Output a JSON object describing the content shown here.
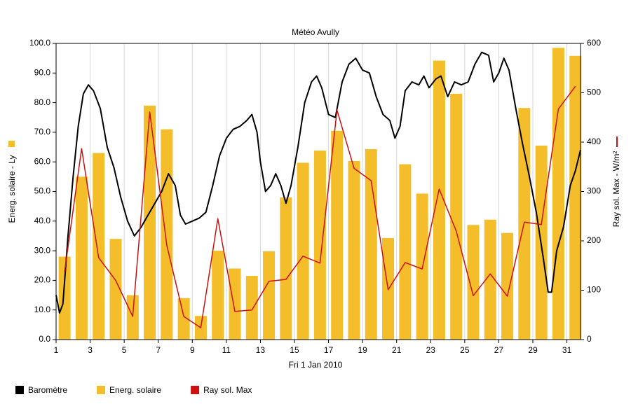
{
  "chart_data": {
    "type": "combo",
    "title": "Météo Avully",
    "xlabel": "Fri 1 Jan 2010",
    "ylabel": "Energ. solaire - Ly",
    "y2label": "Ray sol. Max - W/m²",
    "xlim": [
      1,
      31.8
    ],
    "xticks": [
      1,
      3,
      5,
      7,
      9,
      11,
      13,
      15,
      17,
      19,
      21,
      23,
      25,
      27,
      29,
      31
    ],
    "ylim": [
      0,
      100
    ],
    "yticks": [
      {
        "value": 0,
        "label": "0.0"
      },
      {
        "value": 10,
        "label": "10.0"
      },
      {
        "value": 20,
        "label": "20.0"
      },
      {
        "value": 30,
        "label": "30.0"
      },
      {
        "value": 40,
        "label": "40.0"
      },
      {
        "value": 50,
        "label": "50.0"
      },
      {
        "value": 60,
        "label": "60.0"
      },
      {
        "value": 70,
        "label": "70.0"
      },
      {
        "value": 80,
        "label": "80.0"
      },
      {
        "value": 90,
        "label": "90.0"
      },
      {
        "value": 100,
        "label": "100.0"
      }
    ],
    "y2lim": [
      0,
      600
    ],
    "y2ticks": [
      0,
      100,
      200,
      300,
      400,
      500,
      600
    ],
    "grid": true,
    "series": [
      {
        "name": "Baromètre",
        "type": "line",
        "color": "#000000",
        "x": [
          1.0,
          1.2,
          1.4,
          1.7,
          2.0,
          2.3,
          2.6,
          2.9,
          3.2,
          3.6,
          4.0,
          4.4,
          4.8,
          5.2,
          5.6,
          6.0,
          6.4,
          6.8,
          7.2,
          7.6,
          8.0,
          8.3,
          8.6,
          9.0,
          9.4,
          9.8,
          10.2,
          10.6,
          11.0,
          11.4,
          11.8,
          12.2,
          12.5,
          12.8,
          13.0,
          13.3,
          13.6,
          13.9,
          14.2,
          14.5,
          14.8,
          15.2,
          15.6,
          16.0,
          16.3,
          16.6,
          17.0,
          17.4,
          17.8,
          18.2,
          18.6,
          19.0,
          19.4,
          19.8,
          20.2,
          20.6,
          20.9,
          21.2,
          21.5,
          21.9,
          22.3,
          22.6,
          22.9,
          23.3,
          23.6,
          24.0,
          24.4,
          24.8,
          25.2,
          25.6,
          26.0,
          26.4,
          26.7,
          27.0,
          27.3,
          27.6,
          28.0,
          28.4,
          28.8,
          29.2,
          29.6,
          29.9,
          30.1,
          30.4,
          30.8,
          31.2,
          31.5,
          31.8
        ],
        "values": [
          15,
          9,
          12,
          35,
          55,
          72,
          83,
          86,
          84,
          78,
          65,
          58,
          48,
          40,
          35,
          38,
          42,
          46,
          50,
          56,
          52,
          42,
          39,
          40,
          41,
          43,
          52,
          62,
          68,
          71,
          72,
          74,
          76,
          70,
          60,
          50,
          52,
          56,
          52,
          46,
          52,
          65,
          80,
          87,
          89,
          85,
          76,
          75,
          87,
          93,
          95,
          91,
          90,
          82,
          76,
          74,
          68,
          72,
          84,
          87,
          86,
          89,
          85,
          88,
          89,
          82,
          87,
          86,
          87,
          93,
          97,
          96,
          87,
          90,
          95,
          91,
          78,
          66,
          55,
          43,
          28,
          16,
          16,
          30,
          38,
          52,
          57,
          64
        ]
      },
      {
        "name": "Energ. solaire",
        "type": "bar",
        "color": "#f4bd2a",
        "x": [
          1.5,
          2.5,
          3.5,
          4.5,
          5.5,
          6.5,
          7.5,
          8.5,
          9.5,
          10.5,
          11.5,
          12.5,
          13.5,
          14.5,
          15.5,
          16.5,
          17.5,
          18.5,
          19.5,
          20.5,
          21.5,
          22.5,
          23.5,
          24.5,
          25.5,
          26.5,
          27.5,
          28.5,
          29.5,
          30.5,
          31.5
        ],
        "values": [
          28,
          55,
          63,
          34,
          15,
          79,
          71,
          14,
          8,
          30,
          24,
          21.5,
          29.8,
          48,
          59.7,
          63.8,
          70.5,
          60.3,
          64.3,
          34.3,
          59.2,
          49.3,
          94.2,
          83,
          38.7,
          40.5,
          36,
          78.2,
          65.5,
          98.5,
          95.8
        ]
      },
      {
        "name": "Ray sol. Max",
        "type": "line",
        "axis": "y2",
        "color": "#cc1111",
        "x": [
          1.5,
          2.5,
          3.5,
          4.5,
          5.5,
          6.5,
          7.5,
          8.5,
          9.5,
          10.5,
          11.5,
          12.5,
          13.5,
          14.5,
          15.5,
          16.5,
          17.5,
          18.5,
          19.5,
          20.5,
          21.5,
          22.5,
          23.5,
          24.5,
          25.5,
          26.5,
          27.5,
          28.5,
          29.5,
          30.5,
          31.5
        ],
        "values": [
          137,
          387,
          166,
          120,
          47,
          461,
          191,
          47,
          24,
          245,
          57,
          60,
          118,
          122,
          169,
          155,
          465,
          347,
          322,
          101,
          156,
          143,
          305,
          220,
          89,
          133,
          88,
          238,
          233,
          467,
          513
        ]
      }
    ]
  }
}
